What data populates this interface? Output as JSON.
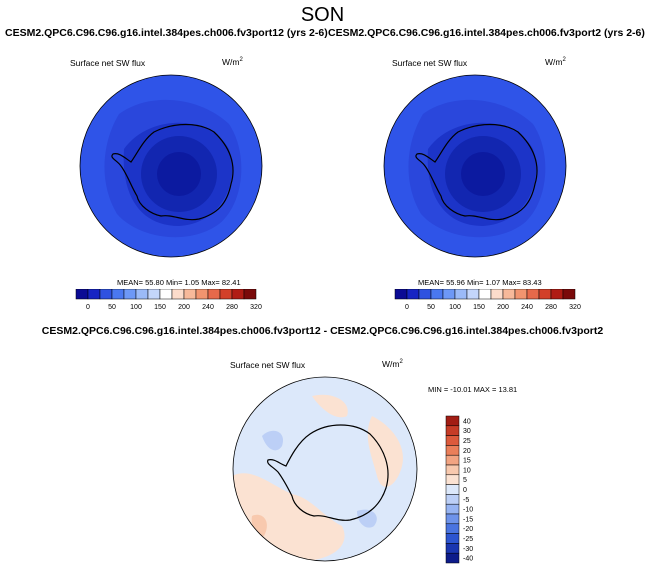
{
  "page": {
    "title": "SON"
  },
  "colors": {
    "bg_ramp": [
      "#0b0b94",
      "#1624c4",
      "#2f52e0",
      "#4a78f0",
      "#6d98f6",
      "#9bbaf8",
      "#c4d6fb",
      "#ffffff",
      "#fcdccb",
      "#f7b99a",
      "#f1946f",
      "#e6694a",
      "#d2402a",
      "#b01c14",
      "#7a0a0a"
    ],
    "diff_ramp": [
      "#0d1c8a",
      "#1a36b0",
      "#2d55d0",
      "#4a74e0",
      "#6e93ea",
      "#97b4f2",
      "#bccff6",
      "#dce8fa",
      "#fbe2d2",
      "#f8c9ae",
      "#f2a482",
      "#ea7f5a",
      "#dc5a3c",
      "#c63c27",
      "#a21d14"
    ]
  },
  "panels": [
    {
      "case_title": "CESM2.QPC6.C96.C96.g16.intel.384pes.ch006.fv3port12 (yrs 2-6)",
      "variable": "Surface net SW flux",
      "units": "W/m",
      "units_sup": "2",
      "stats": "MEAN= 55.80  Min= 1.05  Max= 82.41",
      "colorbar_ticks": [
        "0",
        "50",
        "100",
        "150",
        "200",
        "240",
        "280",
        "320"
      ]
    },
    {
      "case_title": "CESM2.QPC6.C96.C96.g16.intel.384pes.ch006.fv3port2 (yrs 2-6)",
      "variable": "Surface net SW flux",
      "units": "W/m",
      "units_sup": "2",
      "stats": "MEAN= 55.96  Min= 1.07  Max= 83.43",
      "colorbar_ticks": [
        "0",
        "50",
        "100",
        "150",
        "200",
        "240",
        "280",
        "320"
      ]
    }
  ],
  "diff": {
    "title": "CESM2.QPC6.C96.C96.g16.intel.384pes.ch006.fv3port12 - CESM2.QPC6.C96.C96.g16.intel.384pes.ch006.fv3port2",
    "variable": "Surface net SW flux",
    "units": "W/m",
    "units_sup": "2",
    "stats": "MIN = -10.01  MAX =  13.81",
    "colorbar_ticks": [
      "40",
      "30",
      "25",
      "20",
      "15",
      "10",
      "5",
      "0",
      "-5",
      "-10",
      "-15",
      "-20",
      "-25",
      "-30",
      "-40"
    ]
  }
}
